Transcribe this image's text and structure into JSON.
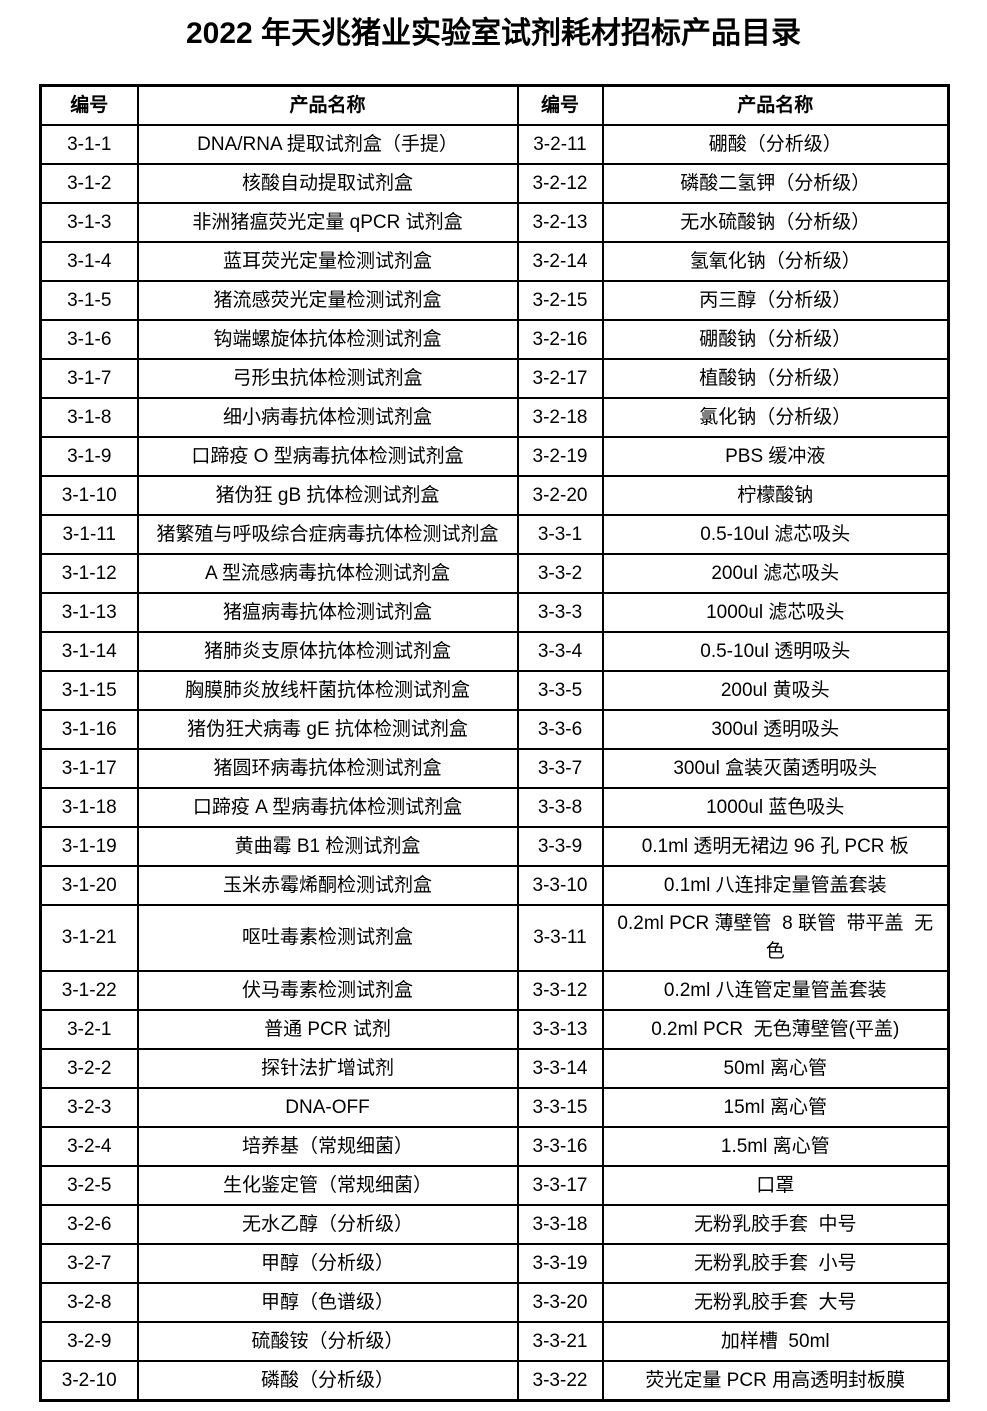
{
  "title": "2022 年天兆猪业实验室试剂耗材招标产品目录",
  "table": {
    "headers": [
      "编号",
      "产品名称",
      "编号",
      "产品名称"
    ],
    "rows": [
      [
        "3-1-1",
        "DNA/RNA 提取试剂盒（手提）",
        "3-2-11",
        "硼酸（分析级）"
      ],
      [
        "3-1-2",
        "核酸自动提取试剂盒",
        "3-2-12",
        "磷酸二氢钾（分析级）"
      ],
      [
        "3-1-3",
        "非洲猪瘟荧光定量 qPCR 试剂盒",
        "3-2-13",
        "无水硫酸钠（分析级）"
      ],
      [
        "3-1-4",
        "蓝耳荧光定量检测试剂盒",
        "3-2-14",
        "氢氧化钠（分析级）"
      ],
      [
        "3-1-5",
        "猪流感荧光定量检测试剂盒",
        "3-2-15",
        "丙三醇（分析级）"
      ],
      [
        "3-1-6",
        "钩端螺旋体抗体检测试剂盒",
        "3-2-16",
        "硼酸钠（分析级）"
      ],
      [
        "3-1-7",
        "弓形虫抗体检测试剂盒",
        "3-2-17",
        "植酸钠（分析级）"
      ],
      [
        "3-1-8",
        "细小病毒抗体检测试剂盒",
        "3-2-18",
        "氯化钠（分析级）"
      ],
      [
        "3-1-9",
        "口蹄疫 O 型病毒抗体检测试剂盒",
        "3-2-19",
        "PBS 缓冲液"
      ],
      [
        "3-1-10",
        "猪伪狂 gB 抗体检测试剂盒",
        "3-2-20",
        "柠檬酸钠"
      ],
      [
        "3-1-11",
        "猪繁殖与呼吸综合症病毒抗体检测试剂盒",
        "3-3-1",
        "0.5-10ul 滤芯吸头"
      ],
      [
        "3-1-12",
        "A 型流感病毒抗体检测试剂盒",
        "3-3-2",
        "200ul 滤芯吸头"
      ],
      [
        "3-1-13",
        "猪瘟病毒抗体检测试剂盒",
        "3-3-3",
        "1000ul 滤芯吸头"
      ],
      [
        "3-1-14",
        "猪肺炎支原体抗体检测试剂盒",
        "3-3-4",
        "0.5-10ul 透明吸头"
      ],
      [
        "3-1-15",
        "胸膜肺炎放线杆菌抗体检测试剂盒",
        "3-3-5",
        "200ul 黄吸头"
      ],
      [
        "3-1-16",
        "猪伪狂犬病毒 gE 抗体检测试剂盒",
        "3-3-6",
        "300ul 透明吸头"
      ],
      [
        "3-1-17",
        "猪圆环病毒抗体检测试剂盒",
        "3-3-7",
        "300ul 盒装灭菌透明吸头"
      ],
      [
        "3-1-18",
        "口蹄疫 A 型病毒抗体检测试剂盒",
        "3-3-8",
        "1000ul 蓝色吸头"
      ],
      [
        "3-1-19",
        "黄曲霉 B1 检测试剂盒",
        "3-3-9",
        "0.1ml 透明无裙边 96 孔 PCR 板"
      ],
      [
        "3-1-20",
        "玉米赤霉烯酮检测试剂盒",
        "3-3-10",
        "0.1ml 八连排定量管盖套装"
      ],
      [
        "3-1-21",
        "呕吐毒素检测试剂盒",
        "3-3-11",
        "0.2ml PCR 薄壁管  8 联管  带平盖  无色"
      ],
      [
        "3-1-22",
        "伏马毒素检测试剂盒",
        "3-3-12",
        "0.2ml 八连管定量管盖套装"
      ],
      [
        "3-2-1",
        "普通 PCR 试剂",
        "3-3-13",
        "0.2ml PCR  无色薄壁管(平盖)"
      ],
      [
        "3-2-2",
        "探针法扩增试剂",
        "3-3-14",
        "50ml 离心管"
      ],
      [
        "3-2-3",
        "DNA-OFF",
        "3-3-15",
        "15ml 离心管"
      ],
      [
        "3-2-4",
        "培养基（常规细菌）",
        "3-3-16",
        "1.5ml 离心管"
      ],
      [
        "3-2-5",
        "生化鉴定管（常规细菌）",
        "3-3-17",
        "口罩"
      ],
      [
        "3-2-6",
        "无水乙醇（分析级）",
        "3-3-18",
        "无粉乳胶手套  中号"
      ],
      [
        "3-2-7",
        "甲醇（分析级）",
        "3-3-19",
        "无粉乳胶手套  小号"
      ],
      [
        "3-2-8",
        "甲醇（色谱级）",
        "3-3-20",
        "无粉乳胶手套  大号"
      ],
      [
        "3-2-9",
        "硫酸铵（分析级）",
        "3-3-21",
        "加样槽  50ml"
      ],
      [
        "3-2-10",
        "磷酸（分析级）",
        "3-3-22",
        "荧光定量 PCR 用高透明封板膜"
      ]
    ]
  }
}
